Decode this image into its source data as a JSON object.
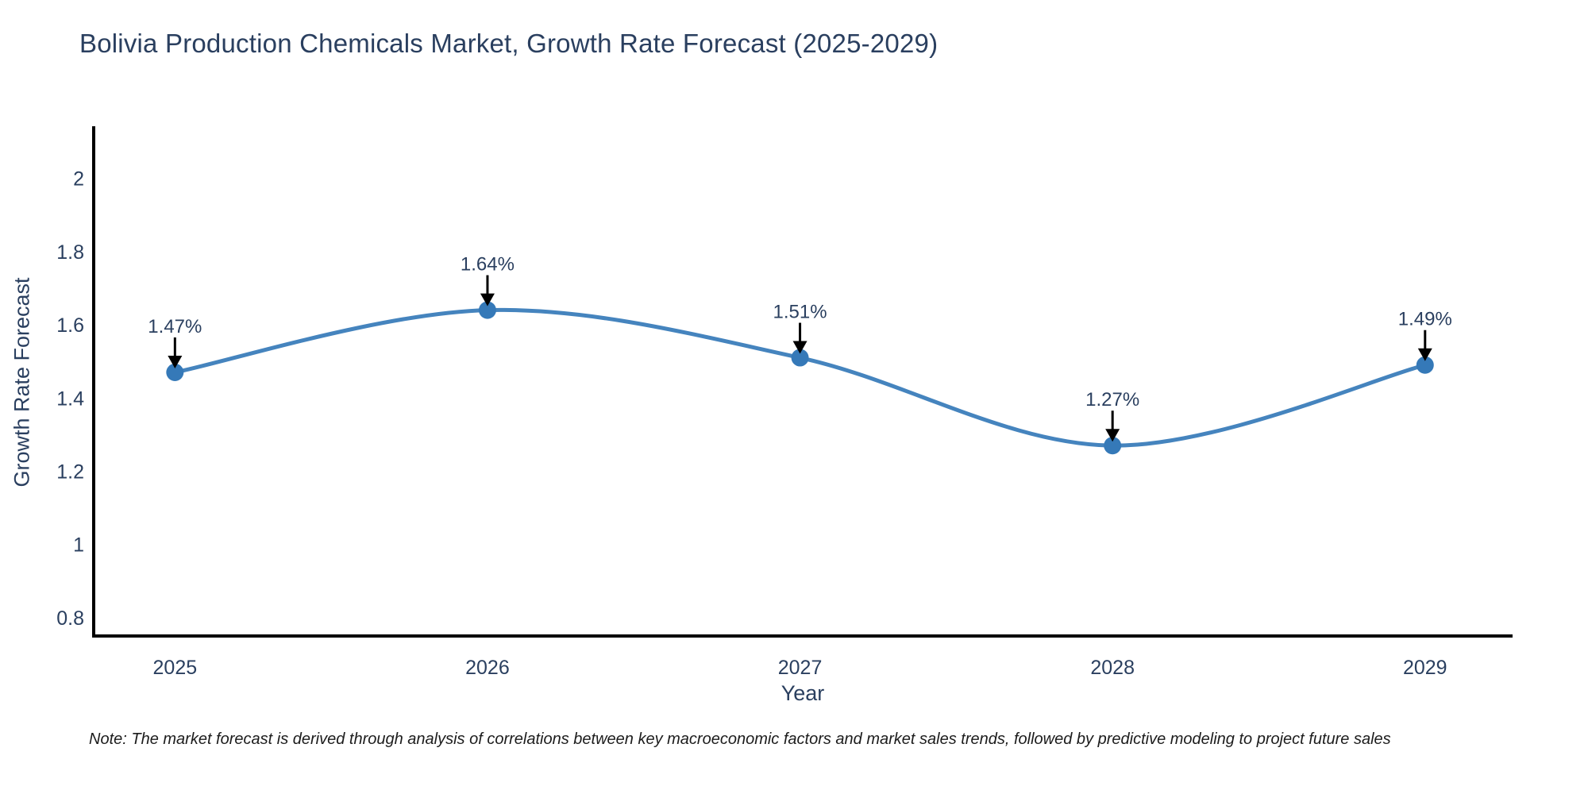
{
  "title": "Bolivia Production Chemicals Market, Growth Rate Forecast (2025-2029)",
  "xaxis": {
    "title": "Year",
    "tick_labels": [
      "2025",
      "2026",
      "2027",
      "2028",
      "2029"
    ]
  },
  "yaxis": {
    "title": "Growth Rate Forecast",
    "tick_labels": [
      "0.8",
      "1",
      "1.2",
      "1.4",
      "1.6",
      "1.8",
      "2"
    ],
    "tick_values": [
      0.8,
      1.0,
      1.2,
      1.4,
      1.6,
      1.8,
      2.0
    ]
  },
  "note": "Note: The market forecast is derived through analysis of correlations between key macroeconomic factors and market sales trends, followed by predictive modeling to project future sales",
  "colors": {
    "line": "#4584be",
    "marker": "#3579b8",
    "axis": "#000000",
    "text": "#2a3f5f",
    "arrow": "#000000",
    "background": "#ffffff"
  },
  "chart_data": {
    "type": "line",
    "line_shape": "spline",
    "title": "Bolivia Production Chemicals Market, Growth Rate Forecast (2025-2029)",
    "xlabel": "Year",
    "ylabel": "Growth Rate Forecast",
    "x": [
      2025,
      2026,
      2027,
      2028,
      2029
    ],
    "series": [
      {
        "name": "Growth Rate Forecast",
        "values": [
          1.47,
          1.64,
          1.51,
          1.27,
          1.49
        ]
      }
    ],
    "point_labels": [
      "1.47%",
      "1.64%",
      "1.51%",
      "1.27%",
      "1.49%"
    ],
    "xlim": [
      2024.74,
      2029.28
    ],
    "ylim": [
      0.75,
      2.14
    ],
    "grid": false,
    "legend": false,
    "annotations_arrows": true
  }
}
